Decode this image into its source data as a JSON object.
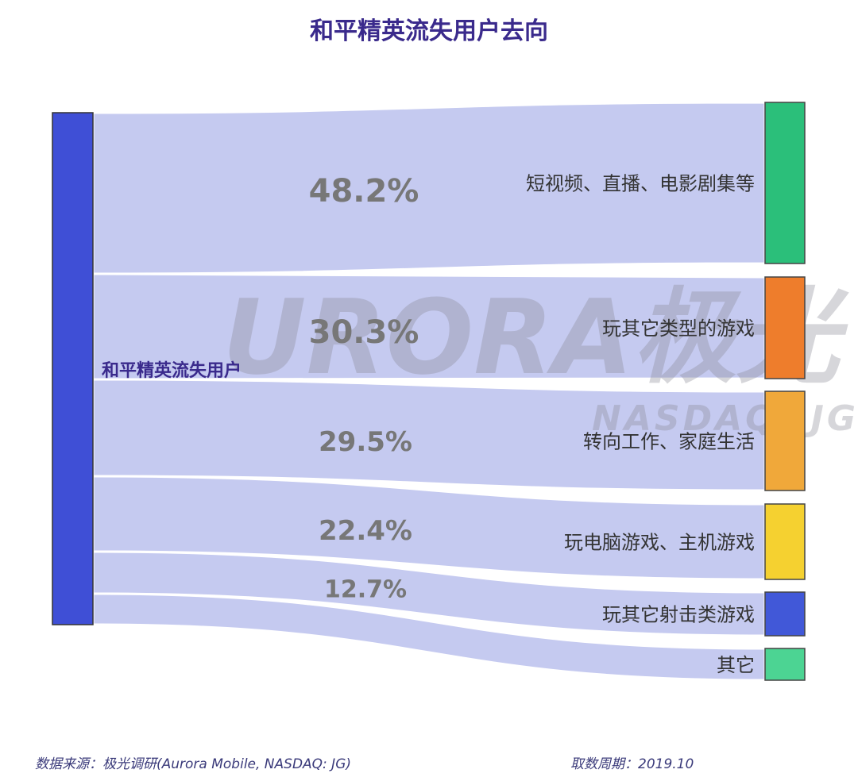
{
  "chart_data": {
    "type": "sankey",
    "title": "和平精英流失用户去向",
    "source": {
      "label": "和平精英流失用户",
      "color": "#3f4fd6"
    },
    "targets": [
      {
        "label": "短视频、直播、电影剧集等",
        "value": 48.2,
        "value_label": "48.2%",
        "color": "#2bbf7a"
      },
      {
        "label": "玩其它类型的游戏",
        "value": 30.3,
        "value_label": "30.3%",
        "color": "#ee7d2c"
      },
      {
        "label": "转向工作、家庭生活",
        "value": 29.5,
        "value_label": "29.5%",
        "color": "#f0a83a"
      },
      {
        "label": "玩电脑游戏、主机游戏",
        "value": 22.4,
        "value_label": "22.4%",
        "color": "#f5d130"
      },
      {
        "label": "玩其它射击类游戏",
        "value": 12.7,
        "value_label": "12.7%",
        "color": "#4158d8"
      },
      {
        "label": "其它",
        "value": null,
        "value_label": "",
        "color": "#4cd493"
      }
    ],
    "flow_color": "#c5caf0"
  },
  "watermark": {
    "text": "URORA极光",
    "sub": "NASDAQ: JG"
  },
  "footer": {
    "source": "数据来源：极光调研(Aurora Mobile, NASDAQ: JG)",
    "period": "取数周期：2019.10"
  }
}
